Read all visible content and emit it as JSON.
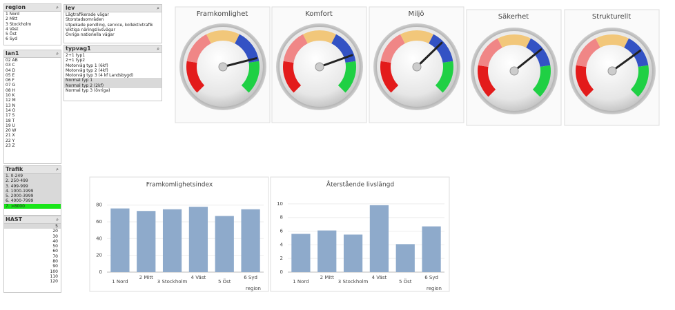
{
  "listboxes": [
    {
      "title": "region",
      "items": [
        "1 Nord",
        "2 Mitt",
        "3 Stockholm",
        "4 Väst",
        "5 Öst",
        "6 Syd"
      ]
    },
    {
      "title": "lev",
      "items": [
        "Lågtrafikerade vägar",
        "Storstadsområden",
        "Utpekade pendling, service, kollektivtrafik",
        "Viktiga näringslivsvägar",
        "Övriga nationella vägar"
      ]
    },
    {
      "title": "lan1",
      "items": [
        "02 AB",
        "03 C",
        "04 D",
        "05 E",
        "06 F",
        "07 G",
        "08 H",
        "10 K",
        "12 M",
        "13 N",
        "14 O",
        "17 S",
        "18 T",
        "19 U",
        "20 W",
        "21 X",
        "22 Y",
        "23 Z"
      ]
    },
    {
      "title": "typvag1",
      "items": [
        "2+1 typ1",
        "2+1 typ2",
        "Motorväg typ 1 (6kf)",
        "Motorväg typ 2 (4kf)",
        "Motorväg typ 3 (4 kf Landsbygd)",
        "Normal typ 1",
        "Normal typ 2 (2kf)",
        "Normal typ 3 (övriga)"
      ]
    },
    {
      "title": "Trafik",
      "items": [
        "1. 0-249",
        "2. 250-499",
        "3. 499-999",
        "4. 1000-1999",
        "5. 2000-3999",
        "6. 4000-7999",
        "7. >8000"
      ]
    },
    {
      "title": "HAST",
      "items": [
        "5",
        "20",
        "30",
        "40",
        "50",
        "60",
        "70",
        "80",
        "90",
        "100",
        "110",
        "120"
      ]
    }
  ],
  "chart_data": [
    {
      "type": "gauge",
      "title": "Framkomlighet",
      "value": 78,
      "ylim": [
        0,
        100
      ]
    },
    {
      "type": "gauge",
      "title": "Komfort",
      "value": 76,
      "ylim": [
        0,
        100
      ]
    },
    {
      "type": "gauge",
      "title": "Miljö",
      "value": 67,
      "ylim": [
        0,
        100
      ]
    },
    {
      "type": "gauge",
      "title": "Säkerhet",
      "value": 69,
      "ylim": [
        0,
        100
      ]
    },
    {
      "type": "gauge",
      "title": "Strukturellt",
      "value": 70,
      "ylim": [
        0,
        100
      ]
    },
    {
      "type": "bar",
      "title": "Framkomlighetsindex",
      "categories": [
        "1 Nord",
        "2 Mitt",
        "3 Stockholm",
        "4 Väst",
        "5 Öst",
        "6 Syd"
      ],
      "values": [
        76,
        73,
        75,
        78,
        67,
        75
      ],
      "color": "#8eaacb",
      "ylim": [
        0,
        88
      ],
      "yticks": [
        0,
        20,
        40,
        60,
        80
      ],
      "x_label": "region",
      "grid": true
    },
    {
      "type": "bar",
      "title": "Återstående livslängd",
      "categories": [
        "1 Nord",
        "2 Mitt",
        "3 Stockholm",
        "4 Väst",
        "5 Öst",
        "6 Syd"
      ],
      "values": [
        5.6,
        6.1,
        5.5,
        9.8,
        4.1,
        6.7
      ],
      "color": "#8eaacb",
      "ylim": [
        0,
        10.8
      ],
      "yticks": [
        0,
        2,
        4,
        6,
        8,
        10
      ],
      "x_label": "region",
      "grid": true
    }
  ]
}
